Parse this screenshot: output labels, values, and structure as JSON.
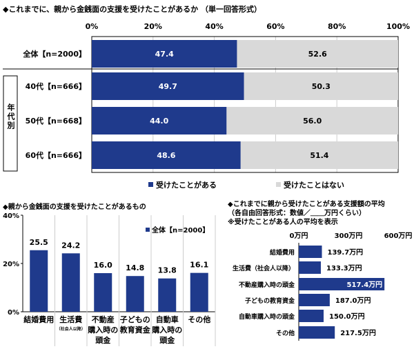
{
  "chart_data": [
    {
      "type": "bar",
      "orientation": "horizontal",
      "stacked": true,
      "title": "◆これまでに、親から金銭面の支援を受けたことがあるか （単一回答形式）",
      "categories": [
        "全体【n=2000】",
        "40代【n=666】",
        "50代【n=668】",
        "60代【n=666】"
      ],
      "group_label": "年代別",
      "series": [
        {
          "name": "受けたことがある",
          "values": [
            47.4,
            49.7,
            44.0,
            48.6
          ],
          "color": "#1f3a8c"
        },
        {
          "name": "受けたことはない",
          "values": [
            52.6,
            50.3,
            56.0,
            51.4
          ],
          "color": "#d9d9d9"
        }
      ],
      "xticks": [
        "0%",
        "20%",
        "40%",
        "60%",
        "80%",
        "100%"
      ],
      "xlim": [
        0,
        100
      ],
      "legend": "bottom"
    },
    {
      "type": "bar",
      "title": "◆親から金銭面の支援を受けたことがあるもの",
      "categories": [
        [
          "結婚費用"
        ],
        [
          "生活費",
          "（社会人以降）"
        ],
        [
          "不動産",
          "購入時の",
          "頭金"
        ],
        [
          "子どもの",
          "教育資金"
        ],
        [
          "自動車",
          "購入時の",
          "頭金"
        ],
        [
          "その他"
        ]
      ],
      "series": [
        {
          "name": "全体【n=2000】",
          "values": [
            25.5,
            24.2,
            16.0,
            14.8,
            13.8,
            16.1
          ],
          "color": "#1f3a8c"
        }
      ],
      "value_labels": [
        "25.5",
        "24.2",
        "16.0",
        "14.8",
        "13.8",
        "16.1"
      ],
      "yticks": [
        "0%",
        "20%",
        "40%"
      ],
      "ylim": [
        0,
        40
      ],
      "legend": "top-right"
    },
    {
      "type": "bar",
      "orientation": "horizontal",
      "title_lines": [
        "◆これまでに親から受けたことがある支援額の平均",
        "（各自由回答形式：数値／＿＿万円くらい）",
        "※受けたことがある人の平均を表示"
      ],
      "categories": [
        "結婚費用",
        "生活費（社会人以降）",
        "不動産購入時の頭金",
        "子どもの教育資金",
        "自動車購入時の頭金",
        "その他"
      ],
      "values": [
        139.7,
        133.3,
        517.4,
        187.0,
        150.0,
        217.5
      ],
      "value_labels": [
        "139.7万円",
        "133.3万円",
        "517.4万円",
        "187.0万円",
        "150.0万円",
        "217.5万円"
      ],
      "xticks": [
        "0万円",
        "300万円",
        "600万円"
      ],
      "xlim": [
        0,
        600
      ],
      "color": "#1f3a8c"
    }
  ]
}
